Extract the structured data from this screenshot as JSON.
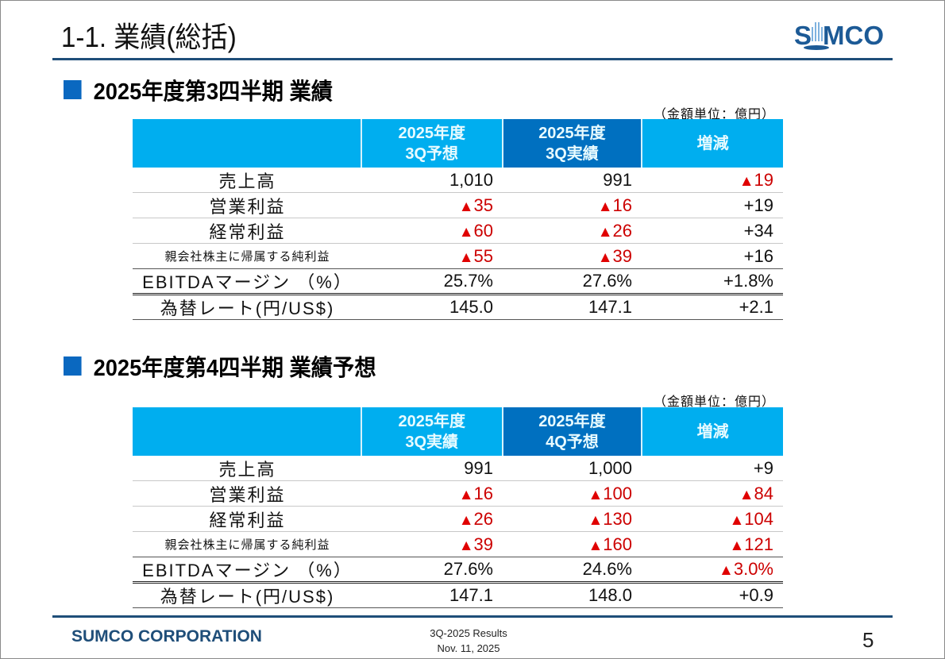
{
  "header": {
    "title": "1-1. 業績(総括)",
    "logo_text_left": "S",
    "logo_text_right": "MCO",
    "logo_alt": "SUMCO"
  },
  "accent_colors": {
    "rule": "#1f4e79",
    "header_light_blue": "#00aeef",
    "header_dark_blue": "#0070c0",
    "section_square": "#0a68c0",
    "negative": "#cc0000"
  },
  "section1": {
    "title": "2025年度第3四半期 業績",
    "unit": "（金額単位：億円）",
    "columns": [
      "",
      "2025年度\n3Q予想",
      "2025年度\n3Q実績",
      "増減"
    ],
    "col_lines": [
      [
        "2025年度",
        "3Q予想"
      ],
      [
        "2025年度",
        "3Q実績"
      ],
      [
        "増減"
      ]
    ],
    "rows": [
      {
        "label": "売上高",
        "v1": "1,010",
        "v2": "991",
        "v3": "▲19"
      },
      {
        "label": "営業利益",
        "v1": "▲35",
        "v2": "▲16",
        "v3": "+19"
      },
      {
        "label": "経常利益",
        "v1": "▲60",
        "v2": "▲26",
        "v3": "+34"
      },
      {
        "label": "親会社株主に帰属する純利益",
        "v1": "▲55",
        "v2": "▲39",
        "v3": "+16"
      },
      {
        "label": "EBITDAマージン （%）",
        "v1": "25.7%",
        "v2": "27.6%",
        "v3": "+1.8%"
      },
      {
        "label": "為替レート(円/US$)",
        "v1": "145.0",
        "v2": "147.1",
        "v3": "+2.1"
      }
    ]
  },
  "section2": {
    "title": "2025年度第4四半期 業績予想",
    "unit": "（金額単位：億円）",
    "col_lines": [
      [
        "2025年度",
        "3Q実績"
      ],
      [
        "2025年度",
        "4Q予想"
      ],
      [
        "増減"
      ]
    ],
    "rows": [
      {
        "label": "売上高",
        "v1": "991",
        "v2": "1,000",
        "v3": "+9"
      },
      {
        "label": "営業利益",
        "v1": "▲16",
        "v2": "▲100",
        "v3": "▲84"
      },
      {
        "label": "経常利益",
        "v1": "▲26",
        "v2": "▲130",
        "v3": "▲104"
      },
      {
        "label": "親会社株主に帰属する純利益",
        "v1": "▲39",
        "v2": "▲160",
        "v3": "▲121"
      },
      {
        "label": "EBITDAマージン （%）",
        "v1": "27.6%",
        "v2": "24.6%",
        "v3": "▲3.0%"
      },
      {
        "label": "為替レート(円/US$)",
        "v1": "147.1",
        "v2": "148.0",
        "v3": "+0.9"
      }
    ]
  },
  "footer": {
    "company": "SUMCO CORPORATION",
    "doc_title": "3Q-2025 Results",
    "date": "Nov. 11, 2025",
    "page_number": "5"
  }
}
